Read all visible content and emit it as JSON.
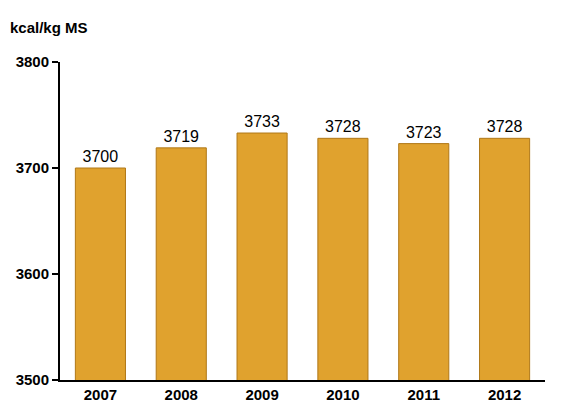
{
  "chart_data": {
    "type": "bar",
    "ylabel": "kcal/kg MS",
    "categories": [
      "2007",
      "2008",
      "2009",
      "2010",
      "2011",
      "2012"
    ],
    "values": [
      3700,
      3719,
      3733,
      3728,
      3723,
      3728
    ],
    "color": "#e0a22e",
    "ylim": [
      3500,
      3800
    ],
    "yticks": [
      3500,
      3600,
      3700,
      3800
    ],
    "grid": false,
    "data_labels": true
  }
}
